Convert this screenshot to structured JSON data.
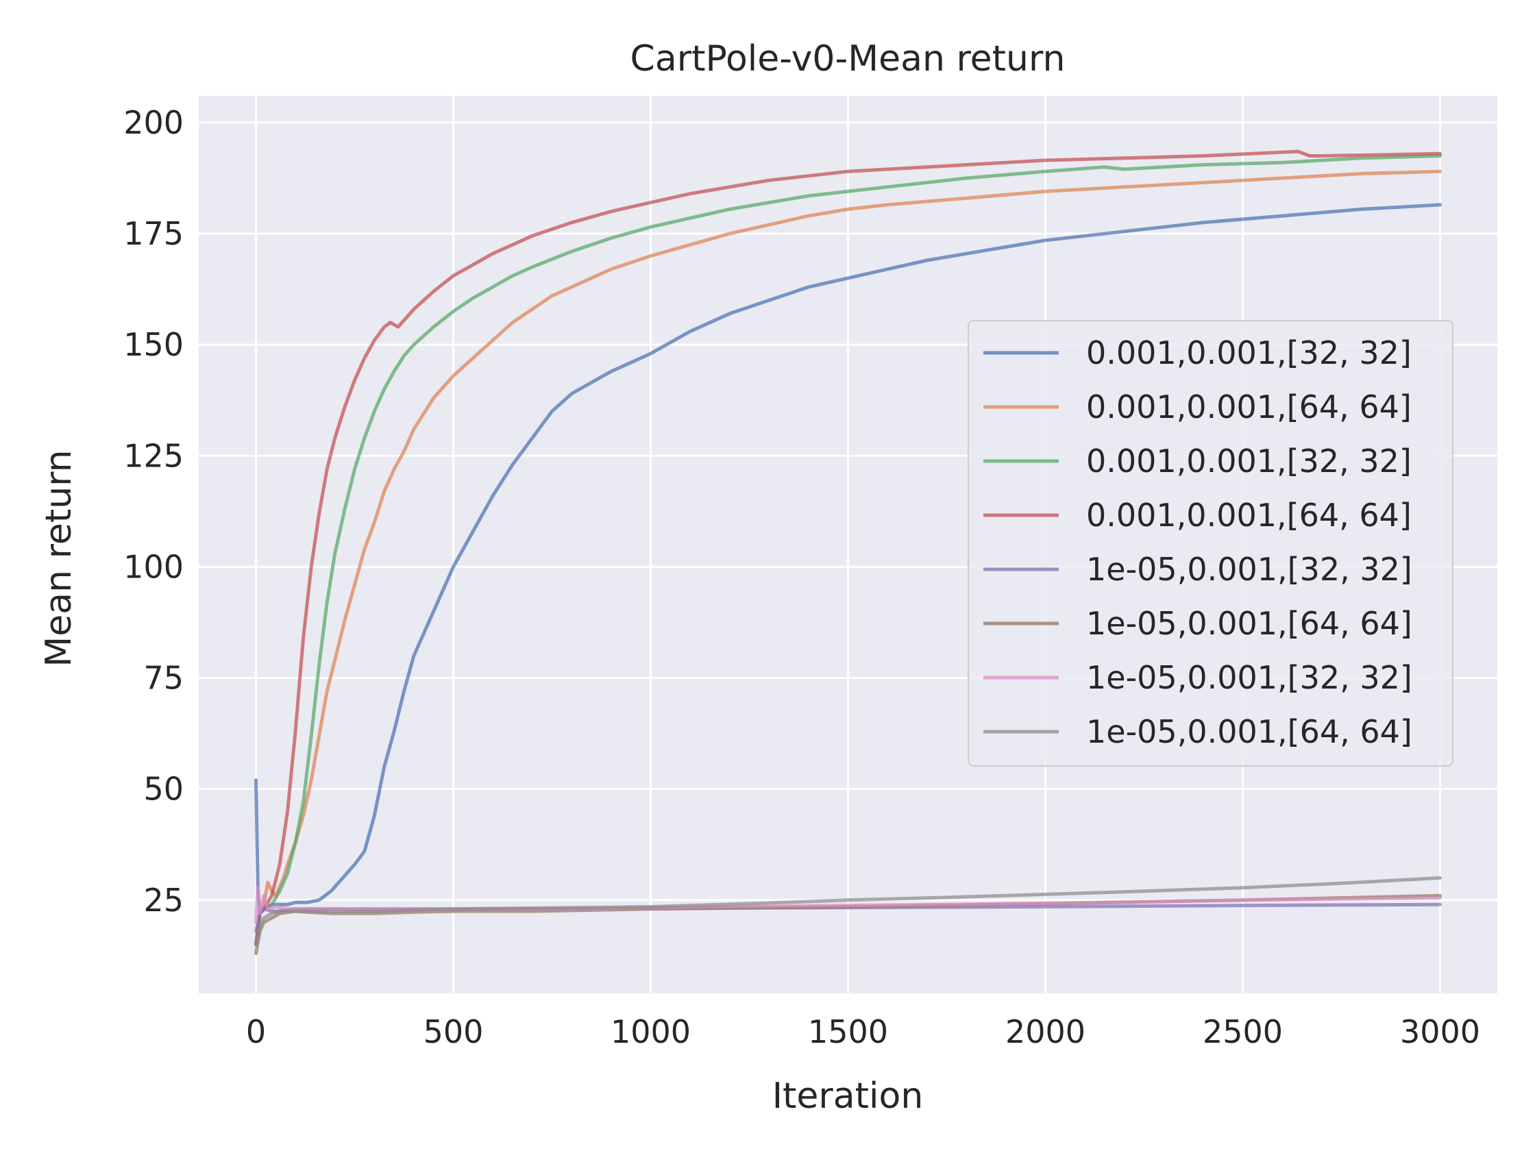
{
  "chart_data": {
    "type": "line",
    "title": "CartPole-v0-Mean return",
    "xlabel": "Iteration",
    "ylabel": "Mean return",
    "xlim": [
      -145,
      3145
    ],
    "ylim": [
      4,
      206
    ],
    "xticks": [
      0,
      500,
      1000,
      1500,
      2000,
      2500,
      3000
    ],
    "xtick_labels": [
      "0",
      "500",
      "1000",
      "1500",
      "2000",
      "2500",
      "3000"
    ],
    "yticks": [
      25,
      50,
      75,
      100,
      125,
      150,
      175,
      200
    ],
    "ytick_labels": [
      "25",
      "50",
      "75",
      "100",
      "125",
      "150",
      "175",
      "200"
    ],
    "grid": true,
    "legend_position": "center-right",
    "series": [
      {
        "name": "0.001,0.001,[32, 32]",
        "color": "#4c72b0",
        "x": [
          0,
          5,
          10,
          20,
          40,
          60,
          80,
          100,
          130,
          160,
          190,
          220,
          250,
          275,
          300,
          325,
          350,
          375,
          400,
          450,
          500,
          550,
          600,
          650,
          700,
          750,
          800,
          900,
          1000,
          1100,
          1200,
          1300,
          1400,
          1500,
          1600,
          1700,
          1800,
          1900,
          2000,
          2200,
          2400,
          2600,
          2800,
          3000
        ],
        "y": [
          52,
          27,
          22,
          23,
          24,
          24,
          24,
          24.5,
          24.5,
          25,
          27,
          30,
          33,
          36,
          44,
          55,
          63,
          72,
          80,
          90,
          100,
          108,
          116,
          123,
          129,
          135,
          139,
          144,
          148,
          153,
          157,
          160,
          163,
          165,
          167,
          169,
          170.5,
          172,
          173.5,
          175.5,
          177.5,
          179,
          180.5,
          181.5
        ]
      },
      {
        "name": "0.001,0.001,[64, 64]",
        "color": "#dd8452",
        "x": [
          0,
          10,
          20,
          30,
          40,
          50,
          60,
          70,
          80,
          100,
          120,
          140,
          160,
          180,
          200,
          225,
          250,
          275,
          300,
          325,
          350,
          375,
          400,
          450,
          500,
          550,
          600,
          650,
          700,
          750,
          800,
          900,
          1000,
          1100,
          1200,
          1300,
          1400,
          1500,
          1600,
          1800,
          2000,
          2200,
          2400,
          2600,
          2800,
          3000
        ],
        "y": [
          15,
          22,
          24,
          29,
          27,
          26,
          28,
          30,
          33,
          38,
          44,
          52,
          62,
          72,
          79,
          88,
          96,
          104,
          110,
          117,
          122,
          126,
          131,
          138,
          143,
          147,
          151,
          155,
          158,
          161,
          163,
          167,
          170,
          172.5,
          175,
          177,
          179,
          180.5,
          181.5,
          183,
          184.5,
          185.5,
          186.5,
          187.5,
          188.5,
          189
        ]
      },
      {
        "name": "0.001,0.001,[32, 32]",
        "color": "#55a868",
        "x": [
          0,
          10,
          20,
          40,
          60,
          80,
          100,
          120,
          140,
          160,
          180,
          200,
          225,
          250,
          275,
          300,
          325,
          350,
          375,
          400,
          450,
          500,
          550,
          600,
          650,
          700,
          800,
          900,
          1000,
          1100,
          1200,
          1300,
          1400,
          1500,
          1600,
          1800,
          2000,
          2150,
          2200,
          2400,
          2600,
          2800,
          3000
        ],
        "y": [
          15,
          22,
          23,
          24,
          27,
          31,
          38,
          47,
          62,
          78,
          92,
          103,
          113,
          122,
          129,
          135,
          140,
          144,
          147.5,
          150,
          154,
          157.5,
          160.5,
          163,
          165.5,
          167.5,
          171,
          174,
          176.5,
          178.5,
          180.5,
          182,
          183.5,
          184.5,
          185.5,
          187.5,
          189,
          190,
          189.5,
          190.5,
          191,
          192,
          192.5
        ]
      },
      {
        "name": "0.001,0.001,[64, 64]",
        "color": "#c44e52",
        "x": [
          0,
          10,
          20,
          40,
          60,
          80,
          100,
          120,
          140,
          160,
          180,
          200,
          225,
          250,
          275,
          300,
          325,
          340,
          360,
          380,
          400,
          450,
          500,
          550,
          600,
          700,
          800,
          900,
          1000,
          1100,
          1200,
          1300,
          1400,
          1500,
          1600,
          1800,
          2000,
          2200,
          2400,
          2640,
          2670,
          2700,
          3000
        ],
        "y": [
          15,
          22,
          23,
          26,
          33,
          45,
          63,
          84,
          100,
          112,
          122,
          129,
          136,
          142,
          147,
          151,
          154,
          155,
          154,
          156,
          158,
          162,
          165.5,
          168,
          170.5,
          174.5,
          177.5,
          180,
          182,
          184,
          185.5,
          187,
          188,
          189,
          189.5,
          190.5,
          191.5,
          192,
          192.5,
          193.5,
          192.5,
          192.5,
          193
        ]
      },
      {
        "name": "1e-05,0.001,[32, 32]",
        "color": "#8172b3",
        "x": [
          0,
          10,
          20,
          40,
          60,
          100,
          200,
          300,
          500,
          700,
          1000,
          1500,
          2000,
          2500,
          3000
        ],
        "y": [
          18,
          22,
          23,
          22.5,
          22.5,
          23,
          23,
          23,
          23,
          23,
          23.2,
          23.3,
          23.5,
          23.8,
          24
        ]
      },
      {
        "name": "1e-05,0.001,[64, 64]",
        "color": "#937860",
        "x": [
          0,
          10,
          20,
          40,
          60,
          100,
          150,
          200,
          250,
          300,
          400,
          500,
          700,
          1000,
          1500,
          2000,
          2500,
          3000
        ],
        "y": [
          13,
          18,
          20,
          21,
          22,
          22.5,
          22.2,
          22,
          22,
          22,
          22.3,
          22.5,
          22.5,
          23,
          23.5,
          24.2,
          25,
          26
        ]
      },
      {
        "name": "1e-05,0.001,[32, 32]",
        "color": "#da8bc3",
        "x": [
          0,
          5,
          10,
          20,
          30,
          50,
          80,
          120,
          200,
          300,
          500,
          800,
          1000,
          1500,
          2000,
          2500,
          3000
        ],
        "y": [
          20,
          28,
          22,
          26,
          23,
          23.5,
          23,
          23,
          23,
          22.8,
          23,
          23,
          23.3,
          23.8,
          24.3,
          25,
          25.5
        ]
      },
      {
        "name": "1e-05,0.001,[64, 64]",
        "color": "#8c8c8c",
        "x": [
          0,
          10,
          20,
          40,
          60,
          100,
          200,
          300,
          500,
          700,
          1000,
          1250,
          1500,
          1750,
          2000,
          2250,
          2500,
          2750,
          3000
        ],
        "y": [
          15,
          19,
          21,
          22,
          22.5,
          22.5,
          22.5,
          22.5,
          23,
          23.2,
          23.5,
          24.2,
          25,
          25.6,
          26.3,
          27,
          27.8,
          28.8,
          30
        ]
      }
    ]
  }
}
